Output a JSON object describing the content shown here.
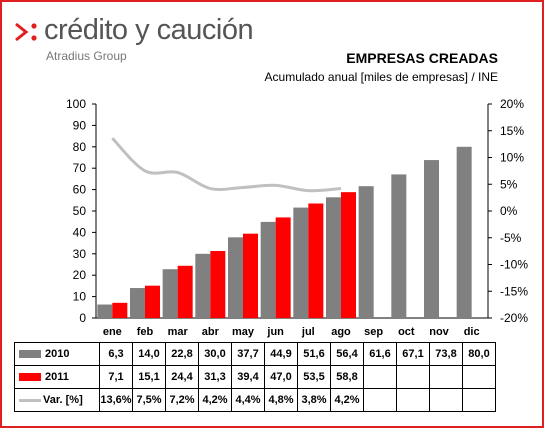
{
  "brand": {
    "name": "crédito y caución",
    "subtitle": "Atradius Group"
  },
  "chart_data": {
    "type": "bar",
    "title": "EMPRESAS CREADAS",
    "subtitle": "Acumulado anual [miles de empresas] / INE",
    "categories": [
      "ene",
      "feb",
      "mar",
      "abr",
      "may",
      "jun",
      "jul",
      "ago",
      "sep",
      "oct",
      "nov",
      "dic"
    ],
    "ylim": [
      0,
      100
    ],
    "yticks": [
      "0",
      "10",
      "20",
      "30",
      "40",
      "50",
      "60",
      "70",
      "80",
      "90",
      "100"
    ],
    "y2lim": [
      -20,
      20
    ],
    "y2ticks": [
      "-20%",
      "-15%",
      "-10%",
      "-5%",
      "0%",
      "5%",
      "10%",
      "15%",
      "20%"
    ],
    "series": [
      {
        "name": "2010",
        "type": "bar",
        "color": "#808080",
        "values": [
          6.3,
          14.0,
          22.8,
          30.0,
          37.7,
          44.9,
          51.6,
          56.4,
          61.6,
          67.1,
          73.8,
          80.0
        ],
        "labels": [
          "6,3",
          "14,0",
          "22,8",
          "30,0",
          "37,7",
          "44,9",
          "51,6",
          "56,4",
          "61,6",
          "67,1",
          "73,8",
          "80,0"
        ]
      },
      {
        "name": "2011",
        "type": "bar",
        "color": "#ff0000",
        "values": [
          7.1,
          15.1,
          24.4,
          31.3,
          39.4,
          47.0,
          53.5,
          58.8,
          null,
          null,
          null,
          null
        ],
        "labels": [
          "7,1",
          "15,1",
          "24,4",
          "31,3",
          "39,4",
          "47,0",
          "53,5",
          "58,8",
          "",
          "",
          "",
          ""
        ]
      },
      {
        "name": "Var. [%]",
        "type": "line",
        "axis": "secondary",
        "color": "#c0c0c0",
        "values": [
          13.6,
          7.5,
          7.2,
          4.2,
          4.4,
          4.8,
          3.8,
          4.2,
          null,
          null,
          null,
          null
        ],
        "labels": [
          "13,6%",
          "7,5%",
          "7,2%",
          "4,2%",
          "4,4%",
          "4,8%",
          "3,8%",
          "4,2%",
          "",
          "",
          "",
          ""
        ]
      }
    ],
    "grid": false,
    "legend": "table"
  }
}
